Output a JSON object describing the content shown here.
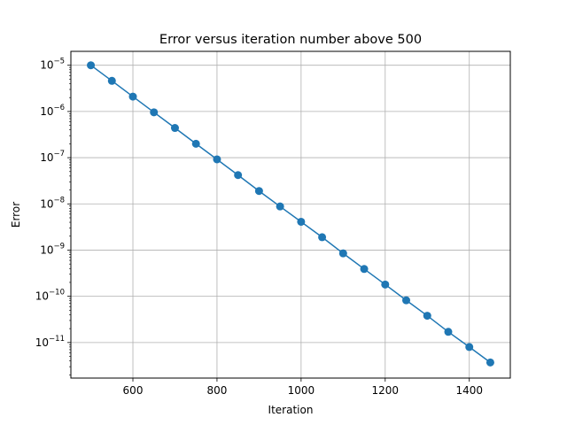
{
  "chart_data": {
    "type": "line",
    "title": "Error versus iteration number above 500",
    "xlabel": "Iteration",
    "ylabel": "Error",
    "xlim": [
      452.5,
      1497.5
    ],
    "ylim": [
      1.7e-12,
      2e-05
    ],
    "yscale": "log",
    "grid": true,
    "series": [
      {
        "color": "#1f77b4",
        "marker": "circle",
        "x": [
          500,
          550,
          600,
          650,
          700,
          750,
          800,
          850,
          900,
          950,
          1000,
          1050,
          1100,
          1150,
          1200,
          1250,
          1300,
          1350,
          1400,
          1450
        ],
        "y": [
          1e-05,
          4.6e-06,
          2.1e-06,
          9.6e-07,
          4.4e-07,
          2e-07,
          9.2e-08,
          4.2e-08,
          1.9e-08,
          8.8e-09,
          4.1e-09,
          1.9e-09,
          8.5e-10,
          3.9e-10,
          1.8e-10,
          8.2e-11,
          3.8e-11,
          1.7e-11,
          8e-12,
          3.7e-12
        ]
      }
    ],
    "xticks": [
      {
        "value": 600,
        "label": "600"
      },
      {
        "value": 800,
        "label": "800"
      },
      {
        "value": 1000,
        "label": "1000"
      },
      {
        "value": 1200,
        "label": "1200"
      },
      {
        "value": 1400,
        "label": "1400"
      }
    ],
    "yticks": [
      {
        "value": 1e-05,
        "base": "10",
        "exp": "−5"
      },
      {
        "value": 1e-06,
        "base": "10",
        "exp": "−6"
      },
      {
        "value": 1e-07,
        "base": "10",
        "exp": "−7"
      },
      {
        "value": 1e-08,
        "base": "10",
        "exp": "−8"
      },
      {
        "value": 1e-09,
        "base": "10",
        "exp": "−9"
      },
      {
        "value": 1e-10,
        "base": "10",
        "exp": "−10"
      },
      {
        "value": 1e-11,
        "base": "10",
        "exp": "−11"
      }
    ]
  }
}
